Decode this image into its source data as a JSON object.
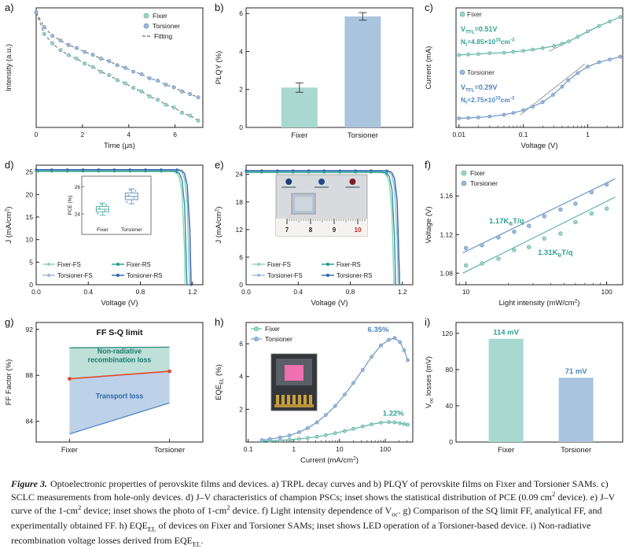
{
  "colors": {
    "teal_light": "#9fd4c9",
    "teal_edge": "#5bb4a4",
    "teal_dark": "#1f9c8b",
    "teal_text": "#2fa293",
    "blue_light": "#9cb9da",
    "blue_edge": "#6b96c4",
    "blue_dark": "#2c66a8",
    "blue_text": "#4e86c0",
    "red_line": "#e0492f"
  },
  "chart_data": [
    {
      "id": "a",
      "label": "a)",
      "type": "line",
      "xlabel": "Time (μs)",
      "ylabel": "Intensity (a.u.)",
      "xlim": [
        0,
        7.2
      ],
      "xticks": [
        0,
        2,
        4,
        6
      ],
      "yscale": "log",
      "ylim": [
        0.03,
        1.15
      ],
      "fitting_label": "Fitting",
      "series": [
        {
          "name": "Fixer",
          "color": "#9fd4c9",
          "edge": "#5bb4a4",
          "x": [
            0,
            0.35,
            0.7,
            1.05,
            1.4,
            1.75,
            2.1,
            2.45,
            2.8,
            3.15,
            3.5,
            3.85,
            4.2,
            4.55,
            4.9,
            5.25,
            5.6,
            5.95,
            6.3,
            6.65,
            7.0
          ],
          "y": [
            1.0,
            0.52,
            0.39,
            0.316,
            0.272,
            0.245,
            0.21,
            0.19,
            0.163,
            0.148,
            0.127,
            0.115,
            0.1,
            0.09,
            0.077,
            0.07,
            0.06,
            0.055,
            0.047,
            0.043,
            0.037
          ]
        },
        {
          "name": "Torsioner",
          "color": "#9cb9da",
          "edge": "#6b96c4",
          "x": [
            0,
            0.35,
            0.7,
            1.05,
            1.4,
            1.75,
            2.1,
            2.45,
            2.8,
            3.15,
            3.5,
            3.85,
            4.2,
            4.55,
            4.9,
            5.25,
            5.6,
            5.95,
            6.3,
            6.65,
            7.0
          ],
          "y": [
            1.0,
            0.64,
            0.49,
            0.425,
            0.37,
            0.338,
            0.3,
            0.275,
            0.245,
            0.226,
            0.2,
            0.185,
            0.164,
            0.152,
            0.134,
            0.125,
            0.11,
            0.102,
            0.09,
            0.083,
            0.075
          ]
        }
      ]
    },
    {
      "id": "b",
      "label": "b)",
      "type": "bar",
      "ylabel": "PLQY (%)",
      "ylim": [
        0,
        6.3
      ],
      "yticks": [
        0,
        2,
        4,
        6
      ],
      "categories": [
        "Fixer",
        "Torsioner"
      ],
      "values": [
        2.1,
        5.85
      ],
      "errors": [
        0.25,
        0.2
      ],
      "bar_colors": [
        "#a8d8cf",
        "#aac4de"
      ]
    },
    {
      "id": "c",
      "label": "c)",
      "type": "line",
      "xlabel": "Voltage (V)",
      "ylabel": "Current (mA)",
      "xscale": "log",
      "xlim": [
        0.009,
        3.5
      ],
      "xticks": [
        0.01,
        0.1,
        1
      ],
      "ylim": [
        0,
        1.32
      ],
      "series": [
        {
          "name": "Fixer",
          "color": "#9fd4c9",
          "edge": "#5bb4a4",
          "text_color": "#2fa293",
          "v_tfl": "V~TFL~=0.51V",
          "n_t": "N~t~=4.85×10^15^cm^-3^",
          "x": [
            0.01,
            0.014,
            0.02,
            0.03,
            0.05,
            0.07,
            0.1,
            0.14,
            0.2,
            0.3,
            0.4,
            0.51,
            0.7,
            1.0,
            1.5,
            2.2,
            3.2
          ],
          "y": [
            0.8,
            0.805,
            0.81,
            0.82,
            0.825,
            0.835,
            0.845,
            0.86,
            0.875,
            0.9,
            0.925,
            0.95,
            1.0,
            1.06,
            1.12,
            1.17,
            1.22
          ],
          "guide": [
            [
              0.25,
              0.84
            ],
            [
              1.6,
              1.13
            ]
          ]
        },
        {
          "name": "Torsioner",
          "color": "#9cb9da",
          "edge": "#6b96c4",
          "text_color": "#4e86c0",
          "v_tfl": "V~TFL~=0.29V",
          "n_t": "N~t~=2.75×10^15^cm^-3^",
          "x": [
            0.01,
            0.014,
            0.02,
            0.03,
            0.05,
            0.07,
            0.1,
            0.14,
            0.2,
            0.29,
            0.4,
            0.5,
            0.7,
            1.0,
            1.5,
            2.2,
            3.2
          ],
          "y": [
            0.1,
            0.105,
            0.11,
            0.12,
            0.14,
            0.16,
            0.19,
            0.23,
            0.28,
            0.36,
            0.45,
            0.52,
            0.6,
            0.67,
            0.72,
            0.75,
            0.78
          ],
          "guide": [
            [
              0.09,
              0.14
            ],
            [
              0.9,
              0.7
            ]
          ]
        }
      ]
    },
    {
      "id": "d",
      "label": "d)",
      "type": "line",
      "xlabel": "Voltage (V)",
      "ylabel": "J (mA/cm^2^)",
      "xlim": [
        0,
        1.28
      ],
      "xticks": [
        0,
        0.4,
        0.8,
        1.2
      ],
      "ylim": [
        0,
        26.5
      ],
      "yticks": [
        0,
        5,
        10,
        15,
        20,
        25
      ],
      "series": [
        {
          "name": "Fixer-FS",
          "jsc": 25.1,
          "voc": 1.145,
          "color": "#8fd0c4"
        },
        {
          "name": "Fixer-RS",
          "jsc": 25.2,
          "voc": 1.158,
          "color": "#1f9c8b"
        },
        {
          "name": "Torsioner-FS",
          "jsc": 25.4,
          "voc": 1.178,
          "color": "#9cb9da"
        },
        {
          "name": "Torsioner-RS",
          "jsc": 25.5,
          "voc": 1.19,
          "color": "#2c66a8"
        }
      ],
      "inset": {
        "ylabel": "PCE (%)",
        "yticks": [
          24,
          26
        ],
        "categories": [
          "Fixer",
          "Torsioner"
        ],
        "boxes": [
          {
            "lo": 23.9,
            "q1": 24.15,
            "med": 24.35,
            "q3": 24.55,
            "hi": 24.8,
            "color": "#5bb4a4"
          },
          {
            "lo": 24.75,
            "q1": 25.05,
            "med": 25.3,
            "q3": 25.55,
            "hi": 25.85,
            "color": "#6b96c4"
          }
        ]
      }
    },
    {
      "id": "e",
      "label": "e)",
      "type": "line",
      "xlabel": "Voltage (V)",
      "ylabel": "J (mA/cm^2^)",
      "xlim": [
        0,
        1.28
      ],
      "xticks": [
        0,
        0.4,
        0.8,
        1.2
      ],
      "ylim": [
        0,
        26
      ],
      "yticks": [
        0,
        6,
        12,
        18,
        24
      ],
      "series": [
        {
          "name": "Fixer-FS",
          "jsc": 24.4,
          "voc": 1.135,
          "color": "#8fd0c4"
        },
        {
          "name": "Fixer-RS",
          "jsc": 24.5,
          "voc": 1.148,
          "color": "#1f9c8b"
        },
        {
          "name": "Torsioner-FS",
          "jsc": 24.7,
          "voc": 1.168,
          "color": "#9cb9da"
        },
        {
          "name": "Torsioner-RS",
          "jsc": 24.8,
          "voc": 1.18,
          "color": "#2c66a8"
        }
      ],
      "inset": {
        "type": "photo",
        "ruler_numbers": [
          "7",
          "8",
          "9",
          "10"
        ]
      }
    },
    {
      "id": "f",
      "label": "f)",
      "type": "scatter",
      "xlabel": "Light intensity (mW/cm^2^)",
      "ylabel": "Voltage (V)",
      "xscale": "log",
      "xlim": [
        8.5,
        130
      ],
      "xticks": [
        10,
        100
      ],
      "ylim": [
        1.068,
        1.192
      ],
      "yticks": [
        1.08,
        1.12,
        1.16
      ],
      "slope_label_color": "#2fa293",
      "series": [
        {
          "name": "Fixer",
          "color": "#9fd4c9",
          "edge": "#5bb4a4",
          "slope_label": "1.31K~B~T/q",
          "x": [
            10,
            13,
            17,
            22,
            28,
            36,
            47,
            60,
            78,
            100
          ],
          "y": [
            1.088,
            1.09,
            1.095,
            1.104,
            1.107,
            1.116,
            1.121,
            1.133,
            1.142,
            1.147
          ],
          "fit": [
            [
              9.5,
              1.08
            ],
            [
              115,
              1.159
            ]
          ]
        },
        {
          "name": "Torsioner",
          "color": "#9cb9da",
          "edge": "#6b96c4",
          "slope_label": "1.17K~B~T/q",
          "x": [
            10,
            13,
            17,
            22,
            28,
            36,
            47,
            60,
            78,
            100
          ],
          "y": [
            1.106,
            1.109,
            1.117,
            1.123,
            1.129,
            1.139,
            1.146,
            1.152,
            1.164,
            1.172
          ],
          "fit": [
            [
              9.5,
              1.101
            ],
            [
              115,
              1.178
            ]
          ]
        }
      ]
    },
    {
      "id": "g",
      "label": "g)",
      "type": "area",
      "title": "FF S-Q limit",
      "ylabel": "FF Factor (%)",
      "categories": [
        "Fixer",
        "Torsioner"
      ],
      "ylim": [
        82.2,
        92.6
      ],
      "yticks": [
        84,
        88,
        92
      ],
      "lines": [
        {
          "name": "SQ limit FF",
          "values": [
            90.4,
            90.45
          ],
          "color": "#2e8b7f"
        },
        {
          "name": "Analytical FF",
          "values": [
            87.7,
            88.35
          ],
          "color": "#e0492f"
        },
        {
          "name": "Experimental FF",
          "values": [
            82.9,
            85.6
          ],
          "color": "#4e86c0"
        }
      ],
      "regions": [
        {
          "lines": [
            "Non-radiative",
            "recombination loss"
          ],
          "fill": "#bfe0d8",
          "text_color": "#17796c"
        },
        {
          "lines": [
            "Transport loss"
          ],
          "fill": "#bdd2e8",
          "text_color": "#2c66a8"
        }
      ]
    },
    {
      "id": "h",
      "label": "h)",
      "type": "line",
      "xlabel": "Current (mA/cm^2^)",
      "ylabel": "EQE~EL~ (%)",
      "xscale": "log",
      "xlim": [
        0.09,
        400
      ],
      "xticks": [
        0.1,
        1,
        10,
        100
      ],
      "ylim": [
        0,
        7.3
      ],
      "yticks": [
        2,
        4,
        6
      ],
      "peak_label_colors": [
        "#2fa293",
        "#4e86c0"
      ],
      "series": [
        {
          "name": "Fixer",
          "color": "#9fd4c9",
          "edge": "#5bb4a4",
          "peak_label": "1.22%",
          "x": [
            0.2,
            0.3,
            0.5,
            0.8,
            1.3,
            2,
            3.2,
            5,
            8,
            13,
            20,
            32,
            50,
            80,
            120,
            160,
            210,
            260,
            310
          ],
          "y": [
            0.05,
            0.07,
            0.1,
            0.14,
            0.19,
            0.25,
            0.32,
            0.42,
            0.54,
            0.67,
            0.8,
            0.95,
            1.08,
            1.18,
            1.22,
            1.2,
            1.15,
            1.1,
            1.05
          ]
        },
        {
          "name": "Torsioner",
          "color": "#9cb9da",
          "edge": "#6b96c4",
          "peak_label": "6.35%",
          "x": [
            0.2,
            0.3,
            0.5,
            0.8,
            1.3,
            2,
            3.2,
            5,
            8,
            13,
            20,
            32,
            50,
            80,
            120,
            160,
            210,
            260,
            310
          ],
          "y": [
            0.12,
            0.18,
            0.28,
            0.4,
            0.6,
            0.85,
            1.2,
            1.65,
            2.2,
            2.9,
            3.6,
            4.4,
            5.2,
            5.9,
            6.25,
            6.35,
            6.1,
            5.6,
            5.0
          ]
        }
      ]
    },
    {
      "id": "i",
      "label": "i)",
      "type": "bar",
      "ylabel": "V~oc~ losses (mV)",
      "ylim": [
        0,
        132
      ],
      "yticks": [
        0,
        40,
        80,
        120
      ],
      "categories": [
        "Fixer",
        "Torsioner"
      ],
      "values": [
        114,
        71
      ],
      "value_labels": [
        "114 mV",
        "71 mV"
      ],
      "bar_colors": [
        "#a8d8cf",
        "#aac4de"
      ],
      "value_label_colors": [
        "#2fa293",
        "#4e86c0"
      ]
    }
  ],
  "caption": {
    "prefix": "Figure 3.",
    "text": "Optoelectronic properties of perovskite films and devices. a) TRPL decay curves and b) PLQY of perovskite films on Fixer and Torsioner SAMs. c) SCLC measurements from hole-only devices. d) J–V characteristics of champion PSCs; inset shows the statistical distribution of PCE (0.09 cm^2^ device). e) J–V curve of the 1-cm^2^ device; inset shows the photo of 1-cm^2^ device. f) Light intensity dependence of V~oc~. g) Comparison of the SQ limit FF, analytical FF, and experimentally obtained FF. h) EQE~EL~ of devices on Fixer and Torsioner SAMs; inset shows LED operation of a Torsioner-based device. i) Non-radiative recombination voltage losses derived from EQE~EL~."
  }
}
